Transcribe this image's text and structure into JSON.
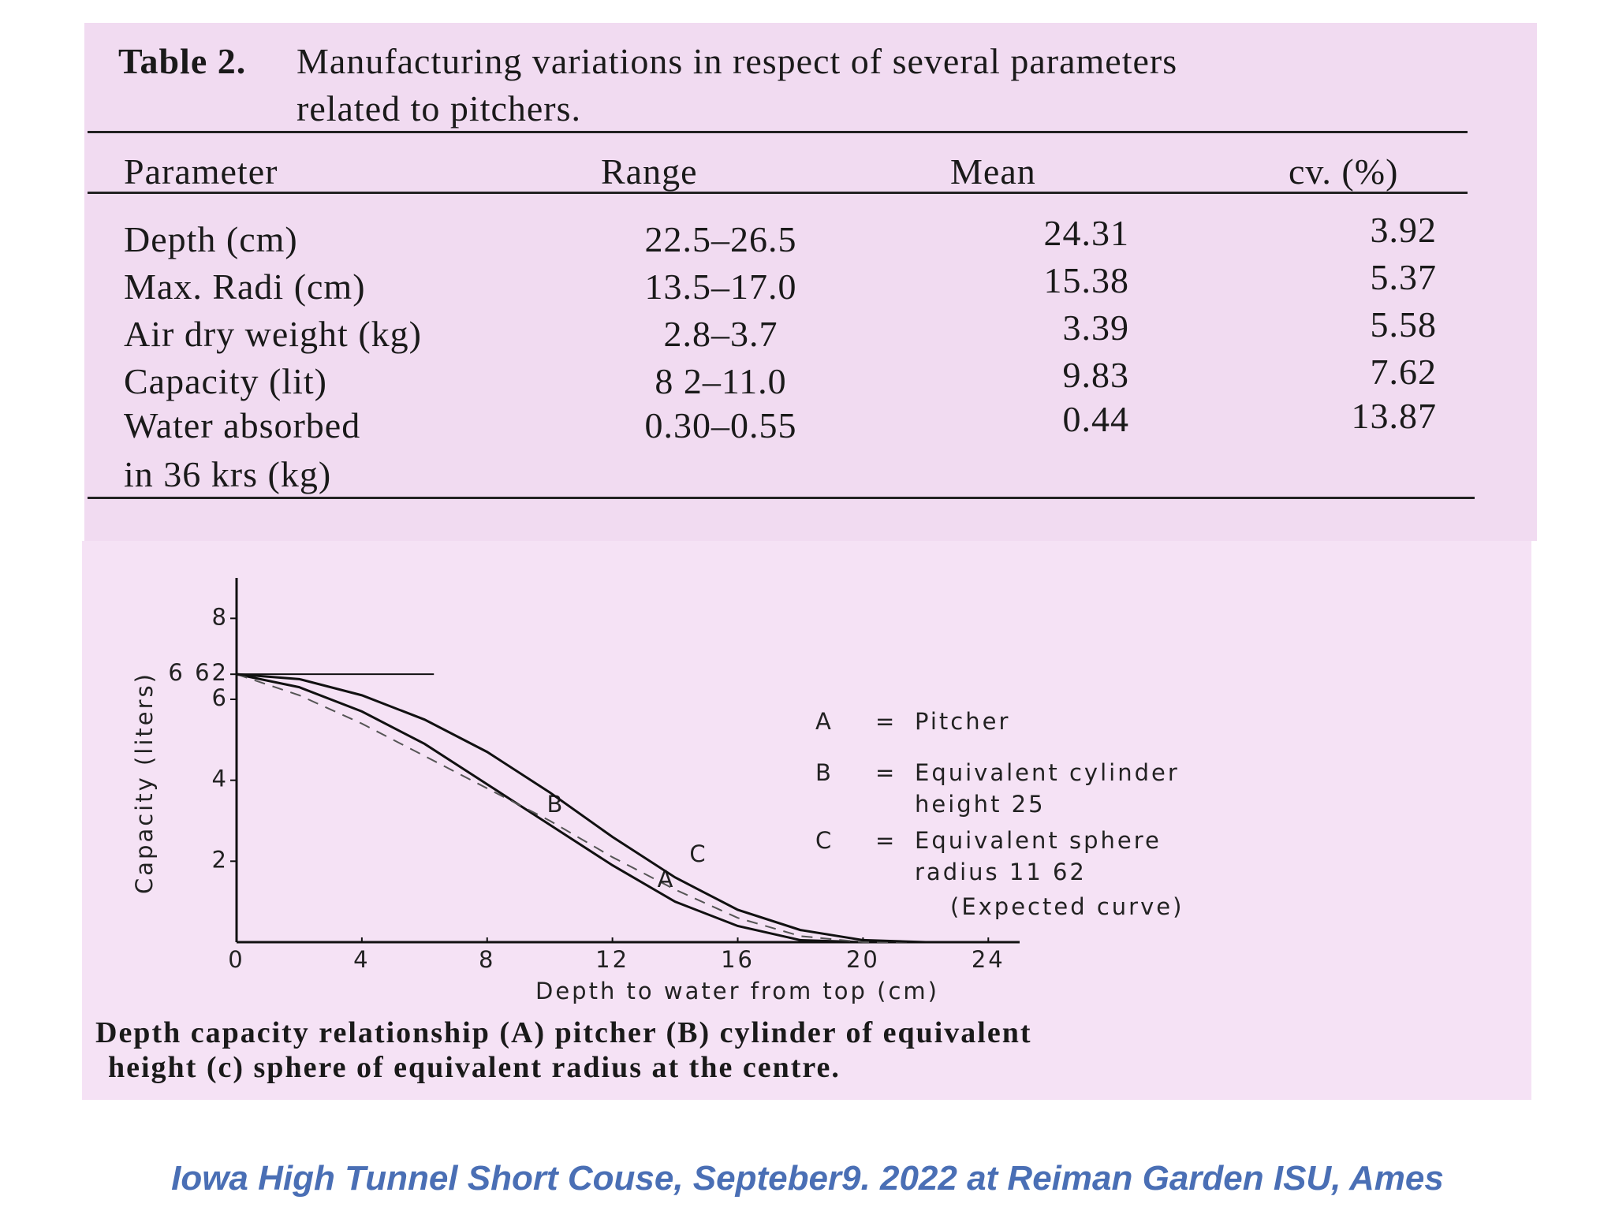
{
  "table": {
    "label": "Table 2.",
    "title": [
      "Manufacturing variations in respect of several parameters",
      "related to pitchers."
    ],
    "headers": [
      "Parameter",
      "Range",
      "Mean",
      "cv. (%)"
    ],
    "rows": [
      {
        "parameter": [
          "Depth (cm)"
        ],
        "range": "22.5–26.5",
        "mean": "24.31",
        "cv": "3.92"
      },
      {
        "parameter": [
          "Max. Radi (cm)"
        ],
        "range": "13.5–17.0",
        "mean": "15.38",
        "cv": "5.37"
      },
      {
        "parameter": [
          "Air dry weight (kg)"
        ],
        "range": "2.8–3.7",
        "mean": "3.39",
        "cv": "5.58"
      },
      {
        "parameter": [
          "Capacity (lit)"
        ],
        "range": "8 2–11.0",
        "mean": "9.83",
        "cv": "7.62"
      },
      {
        "parameter": [
          "Water absorbed",
          "in 36 krs (kg)"
        ],
        "range": "0.30–0.55",
        "mean": "0.44",
        "cv": "13.87"
      }
    ]
  },
  "figure": {
    "chart_data": {
      "type": "line",
      "y_label": "Capacity (liters)",
      "x_label": "Depth to water from top (cm)",
      "xlim": [
        0,
        25
      ],
      "ylim": [
        0,
        9
      ],
      "xticks": [
        0,
        4,
        8,
        12,
        16,
        20,
        24
      ],
      "yticks": [
        2,
        4,
        6,
        8,
        {
          "value": 6.62,
          "label": "6 62"
        }
      ],
      "x": [
        0,
        2,
        4,
        6,
        8,
        10,
        12,
        14,
        16,
        18,
        20,
        22,
        24
      ],
      "series": [
        {
          "name": "B",
          "color": "#111111",
          "dashed": false,
          "values": [
            6.62,
            6.3,
            5.7,
            4.9,
            3.9,
            2.9,
            1.9,
            1.0,
            0.4,
            0.05,
            0,
            0,
            0
          ]
        },
        {
          "name": "A",
          "color": "#555555",
          "dashed": true,
          "values": [
            6.62,
            6.1,
            5.4,
            4.6,
            3.8,
            3.0,
            2.1,
            1.3,
            0.6,
            0.15,
            0,
            0,
            0
          ]
        },
        {
          "name": "C",
          "color": "#111111",
          "dashed": false,
          "values": [
            6.62,
            6.5,
            6.1,
            5.5,
            4.7,
            3.7,
            2.6,
            1.6,
            0.8,
            0.3,
            0.05,
            0,
            0
          ]
        }
      ],
      "legend": [
        {
          "key": "A",
          "sign": "=",
          "lines": [
            "Pitcher"
          ]
        },
        {
          "key": "B",
          "sign": "=",
          "lines": [
            "Equivalent   cylinder",
            "height  25"
          ]
        },
        {
          "key": "C",
          "sign": "=",
          "lines": [
            "Equivalent   sphere",
            "radius  11 62",
            "(Expected curve)"
          ]
        }
      ]
    },
    "caption": [
      "Depth capacity relationship (A) pitcher (B) cylinder of equivalent",
      "height (c) sphere of equivalent radius at the centre."
    ]
  },
  "footer": "Iowa High Tunnel Short Couse, Septeber9. 2022 at Reiman Garden ISU, Ames"
}
